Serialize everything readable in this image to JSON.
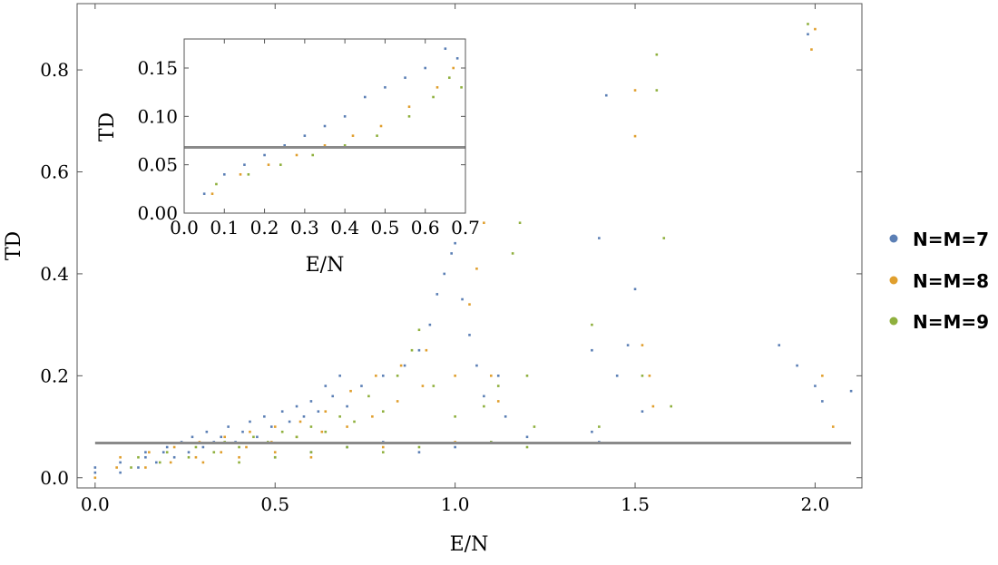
{
  "chart_data": [
    {
      "type": "scatter",
      "title": "",
      "xlabel": "E/N",
      "ylabel": "TD",
      "xlim": [
        -0.05,
        2.13
      ],
      "ylim": [
        -0.02,
        0.93
      ],
      "xticks": [
        0.0,
        0.5,
        1.0,
        1.5,
        2.0
      ],
      "xtick_labels": [
        "0.0",
        "0.5",
        "1.0",
        "1.5",
        "2.0"
      ],
      "yticks": [
        0.0,
        0.2,
        0.4,
        0.6,
        0.8
      ],
      "ytick_labels": [
        "0.0",
        "0.2",
        "0.4",
        "0.6",
        "0.8"
      ],
      "grid": false,
      "legend_position": "right",
      "reference_line": {
        "y": 0.068,
        "x_from": 0.0,
        "x_to": 2.1,
        "color": "#8a8a8a"
      },
      "series": [
        {
          "name": "N=M=7",
          "color": "#5b7fb5",
          "points": [
            [
              0.0,
              0.01
            ],
            [
              0.0,
              0.02
            ],
            [
              0.07,
              0.01
            ],
            [
              0.07,
              0.03
            ],
            [
              0.12,
              0.02
            ],
            [
              0.14,
              0.04
            ],
            [
              0.14,
              0.05
            ],
            [
              0.17,
              0.03
            ],
            [
              0.19,
              0.05
            ],
            [
              0.2,
              0.06
            ],
            [
              0.22,
              0.04
            ],
            [
              0.24,
              0.07
            ],
            [
              0.26,
              0.05
            ],
            [
              0.27,
              0.08
            ],
            [
              0.3,
              0.06
            ],
            [
              0.31,
              0.09
            ],
            [
              0.33,
              0.07
            ],
            [
              0.35,
              0.08
            ],
            [
              0.37,
              0.1
            ],
            [
              0.39,
              0.07
            ],
            [
              0.41,
              0.09
            ],
            [
              0.43,
              0.11
            ],
            [
              0.45,
              0.08
            ],
            [
              0.47,
              0.12
            ],
            [
              0.49,
              0.1
            ],
            [
              0.52,
              0.13
            ],
            [
              0.54,
              0.11
            ],
            [
              0.56,
              0.14
            ],
            [
              0.58,
              0.12
            ],
            [
              0.6,
              0.15
            ],
            [
              0.62,
              0.13
            ],
            [
              0.64,
              0.18
            ],
            [
              0.66,
              0.16
            ],
            [
              0.68,
              0.2
            ],
            [
              0.7,
              0.14
            ],
            [
              0.74,
              0.18
            ],
            [
              0.8,
              0.2
            ],
            [
              0.86,
              0.22
            ],
            [
              0.9,
              0.25
            ],
            [
              0.93,
              0.3
            ],
            [
              0.95,
              0.36
            ],
            [
              0.97,
              0.4
            ],
            [
              0.99,
              0.44
            ],
            [
              1.0,
              0.46
            ],
            [
              1.02,
              0.35
            ],
            [
              1.04,
              0.28
            ],
            [
              1.06,
              0.22
            ],
            [
              1.08,
              0.16
            ],
            [
              1.12,
              0.2
            ],
            [
              1.14,
              0.12
            ],
            [
              1.38,
              0.09
            ],
            [
              1.4,
              0.07
            ],
            [
              1.38,
              0.25
            ],
            [
              1.4,
              0.47
            ],
            [
              1.42,
              0.75
            ],
            [
              1.45,
              0.2
            ],
            [
              1.48,
              0.26
            ],
            [
              1.5,
              0.37
            ],
            [
              1.52,
              0.13
            ],
            [
              1.9,
              0.26
            ],
            [
              1.95,
              0.22
            ],
            [
              1.98,
              0.87
            ],
            [
              2.0,
              0.18
            ],
            [
              2.02,
              0.15
            ],
            [
              2.1,
              0.17
            ],
            [
              0.5,
              0.04
            ],
            [
              0.6,
              0.05
            ],
            [
              0.7,
              0.06
            ],
            [
              0.8,
              0.07
            ],
            [
              0.9,
              0.05
            ],
            [
              1.0,
              0.06
            ],
            [
              1.1,
              0.07
            ],
            [
              1.2,
              0.08
            ]
          ]
        },
        {
          "name": "N=M=8",
          "color": "#e09f2e",
          "points": [
            [
              0.0,
              0.0
            ],
            [
              0.06,
              0.02
            ],
            [
              0.07,
              0.04
            ],
            [
              0.14,
              0.02
            ],
            [
              0.15,
              0.05
            ],
            [
              0.21,
              0.03
            ],
            [
              0.22,
              0.06
            ],
            [
              0.28,
              0.04
            ],
            [
              0.29,
              0.07
            ],
            [
              0.35,
              0.05
            ],
            [
              0.36,
              0.08
            ],
            [
              0.42,
              0.06
            ],
            [
              0.43,
              0.09
            ],
            [
              0.49,
              0.07
            ],
            [
              0.5,
              0.1
            ],
            [
              0.56,
              0.08
            ],
            [
              0.57,
              0.11
            ],
            [
              0.63,
              0.09
            ],
            [
              0.64,
              0.13
            ],
            [
              0.7,
              0.1
            ],
            [
              0.71,
              0.17
            ],
            [
              0.77,
              0.12
            ],
            [
              0.78,
              0.2
            ],
            [
              0.84,
              0.15
            ],
            [
              0.85,
              0.22
            ],
            [
              0.91,
              0.18
            ],
            [
              0.92,
              0.25
            ],
            [
              1.0,
              0.2
            ],
            [
              1.04,
              0.34
            ],
            [
              1.06,
              0.41
            ],
            [
              1.08,
              0.5
            ],
            [
              1.1,
              0.2
            ],
            [
              1.12,
              0.15
            ],
            [
              1.5,
              0.67
            ],
            [
              1.5,
              0.76
            ],
            [
              1.52,
              0.26
            ],
            [
              1.54,
              0.2
            ],
            [
              1.55,
              0.14
            ],
            [
              1.99,
              0.84
            ],
            [
              2.0,
              0.88
            ],
            [
              2.02,
              0.2
            ],
            [
              2.05,
              0.1
            ],
            [
              0.3,
              0.03
            ],
            [
              0.4,
              0.04
            ],
            [
              0.5,
              0.05
            ],
            [
              0.6,
              0.04
            ],
            [
              0.8,
              0.06
            ],
            [
              1.0,
              0.07
            ]
          ]
        },
        {
          "name": "N=M=9",
          "color": "#8fb03e",
          "points": [
            [
              0.1,
              0.02
            ],
            [
              0.12,
              0.04
            ],
            [
              0.18,
              0.03
            ],
            [
              0.2,
              0.05
            ],
            [
              0.26,
              0.04
            ],
            [
              0.28,
              0.06
            ],
            [
              0.33,
              0.05
            ],
            [
              0.36,
              0.07
            ],
            [
              0.4,
              0.06
            ],
            [
              0.44,
              0.08
            ],
            [
              0.48,
              0.07
            ],
            [
              0.52,
              0.09
            ],
            [
              0.56,
              0.08
            ],
            [
              0.6,
              0.1
            ],
            [
              0.64,
              0.09
            ],
            [
              0.68,
              0.12
            ],
            [
              0.72,
              0.11
            ],
            [
              0.76,
              0.16
            ],
            [
              0.8,
              0.13
            ],
            [
              0.84,
              0.2
            ],
            [
              0.88,
              0.25
            ],
            [
              0.9,
              0.29
            ],
            [
              0.94,
              0.18
            ],
            [
              1.0,
              0.12
            ],
            [
              1.08,
              0.14
            ],
            [
              1.12,
              0.18
            ],
            [
              1.16,
              0.44
            ],
            [
              1.18,
              0.5
            ],
            [
              1.2,
              0.2
            ],
            [
              1.22,
              0.1
            ],
            [
              1.38,
              0.3
            ],
            [
              1.4,
              0.1
            ],
            [
              1.52,
              0.2
            ],
            [
              1.56,
              0.76
            ],
            [
              1.56,
              0.83
            ],
            [
              1.58,
              0.47
            ],
            [
              1.6,
              0.14
            ],
            [
              1.98,
              0.89
            ],
            [
              0.4,
              0.03
            ],
            [
              0.5,
              0.04
            ],
            [
              0.6,
              0.05
            ],
            [
              0.7,
              0.06
            ],
            [
              0.8,
              0.05
            ],
            [
              0.9,
              0.06
            ],
            [
              1.1,
              0.07
            ],
            [
              1.2,
              0.06
            ]
          ]
        }
      ]
    },
    {
      "type": "scatter",
      "title": "",
      "xlabel": "E/N",
      "ylabel": "TD",
      "xlim": [
        0.0,
        0.7
      ],
      "ylim": [
        0.0,
        0.18
      ],
      "xticks": [
        0.0,
        0.1,
        0.2,
        0.3,
        0.4,
        0.5,
        0.6,
        0.7
      ],
      "xtick_labels": [
        "0.0",
        "0.1",
        "0.2",
        "0.3",
        "0.4",
        "0.5",
        "0.6",
        "0.7"
      ],
      "yticks": [
        0.0,
        0.05,
        0.1,
        0.15
      ],
      "ytick_labels": [
        "0.00",
        "0.05",
        "0.10",
        "0.15"
      ],
      "grid": false,
      "reference_line": {
        "y": 0.068,
        "color": "#8a8a8a"
      },
      "series": [
        {
          "name": "N=M=7",
          "color": "#5b7fb5",
          "points": [
            [
              0.05,
              0.02
            ],
            [
              0.1,
              0.04
            ],
            [
              0.15,
              0.05
            ],
            [
              0.2,
              0.06
            ],
            [
              0.25,
              0.07
            ],
            [
              0.3,
              0.08
            ],
            [
              0.35,
              0.09
            ],
            [
              0.4,
              0.1
            ],
            [
              0.45,
              0.12
            ],
            [
              0.5,
              0.13
            ],
            [
              0.55,
              0.14
            ],
            [
              0.6,
              0.15
            ],
            [
              0.65,
              0.17
            ],
            [
              0.68,
              0.16
            ]
          ]
        },
        {
          "name": "N=M=8",
          "color": "#e09f2e",
          "points": [
            [
              0.07,
              0.02
            ],
            [
              0.14,
              0.04
            ],
            [
              0.21,
              0.05
            ],
            [
              0.28,
              0.06
            ],
            [
              0.35,
              0.07
            ],
            [
              0.42,
              0.08
            ],
            [
              0.49,
              0.09
            ],
            [
              0.56,
              0.11
            ],
            [
              0.63,
              0.13
            ],
            [
              0.67,
              0.15
            ]
          ]
        },
        {
          "name": "N=M=9",
          "color": "#8fb03e",
          "points": [
            [
              0.08,
              0.03
            ],
            [
              0.16,
              0.04
            ],
            [
              0.24,
              0.05
            ],
            [
              0.32,
              0.06
            ],
            [
              0.4,
              0.07
            ],
            [
              0.48,
              0.08
            ],
            [
              0.56,
              0.1
            ],
            [
              0.62,
              0.12
            ],
            [
              0.66,
              0.14
            ],
            [
              0.69,
              0.13
            ]
          ]
        }
      ]
    }
  ],
  "legend": [
    {
      "label": "N=M=7",
      "color": "#5b7fb5"
    },
    {
      "label": "N=M=8",
      "color": "#e09f2e"
    },
    {
      "label": "N=M=9",
      "color": "#8fb03e"
    }
  ]
}
